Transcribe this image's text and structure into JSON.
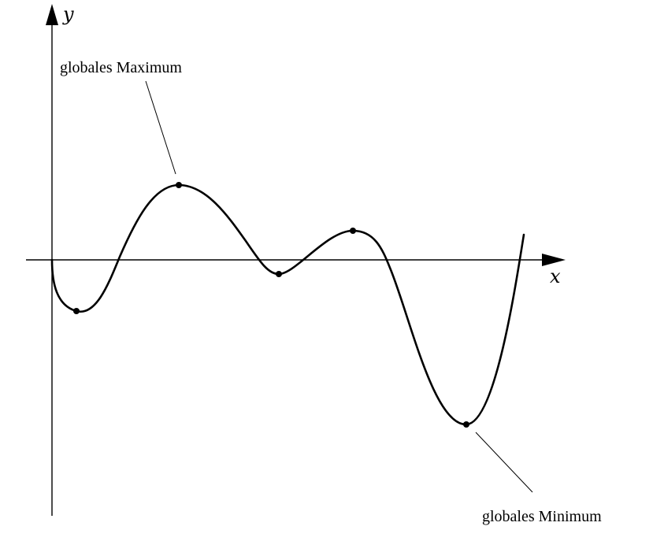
{
  "axes": {
    "x_label": "x",
    "y_label": "y"
  },
  "annotations": {
    "global_max": "globales Maximum",
    "global_min": "globales Minimum"
  },
  "curve": {
    "extrema": [
      {
        "kind": "local minimum",
        "x": 0.55,
        "y": -1.0
      },
      {
        "kind": "global maximum",
        "x": 2.8,
        "y": 1.45
      },
      {
        "kind": "local minimum",
        "x": 5.0,
        "y": -0.27
      },
      {
        "kind": "local maximum",
        "x": 6.6,
        "y": 0.57
      },
      {
        "kind": "global minimum",
        "x": 9.1,
        "y": -3.2
      }
    ],
    "start": {
      "x": 0,
      "y": 0
    },
    "end": {
      "x": 10.3,
      "y": 0.5
    }
  }
}
